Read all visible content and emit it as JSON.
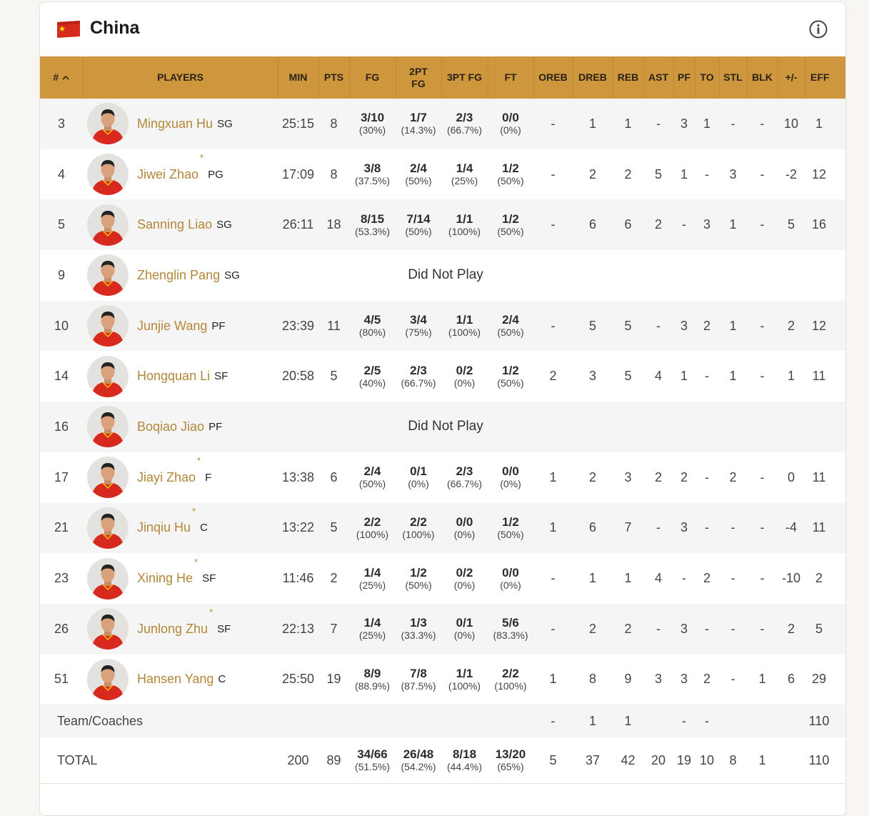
{
  "header": {
    "title": "China"
  },
  "table": {
    "columns": [
      "#",
      "PLAYERS",
      "MIN",
      "PTS",
      "FG",
      "2PT FG",
      "3PT FG",
      "FT",
      "OREB",
      "DREB",
      "REB",
      "AST",
      "PF",
      "TO",
      "STL",
      "BLK",
      "+/-",
      "EFF"
    ],
    "rows": [
      {
        "number": "3",
        "name": "Mingxuan Hu",
        "position": "SG",
        "min": "25:15",
        "pts": "8",
        "shooting": [
          [
            "3/10",
            "(30%)"
          ],
          [
            "1/7",
            "(14.3%)"
          ],
          [
            "2/3",
            "(66.7%)"
          ],
          [
            "0/0",
            "(0%)"
          ]
        ],
        "counting": [
          "-",
          "1",
          "1",
          "-",
          "3",
          "1",
          "-",
          "-",
          "10",
          "1"
        ]
      },
      {
        "number": "4",
        "name": "Jiwei Zhao",
        "starter": "*",
        "position": "PG",
        "min": "17:09",
        "pts": "8",
        "shooting": [
          [
            "3/8",
            "(37.5%)"
          ],
          [
            "2/4",
            "(50%)"
          ],
          [
            "1/4",
            "(25%)"
          ],
          [
            "1/2",
            "(50%)"
          ]
        ],
        "counting": [
          "-",
          "2",
          "2",
          "5",
          "1",
          "-",
          "3",
          "-",
          "-2",
          "12"
        ]
      },
      {
        "number": "5",
        "name": "Sanning Liao",
        "position": "SG",
        "min": "26:11",
        "pts": "18",
        "shooting": [
          [
            "8/15",
            "(53.3%)"
          ],
          [
            "7/14",
            "(50%)"
          ],
          [
            "1/1",
            "(100%)"
          ],
          [
            "1/2",
            "(50%)"
          ]
        ],
        "counting": [
          "-",
          "6",
          "6",
          "2",
          "-",
          "3",
          "1",
          "-",
          "5",
          "16"
        ]
      },
      {
        "number": "9",
        "name": "Zhenglin Pang",
        "position": "SG",
        "note": "Did Not Play"
      },
      {
        "number": "10",
        "name": "Junjie Wang",
        "position": "PF",
        "min": "23:39",
        "pts": "11",
        "shooting": [
          [
            "4/5",
            "(80%)"
          ],
          [
            "3/4",
            "(75%)"
          ],
          [
            "1/1",
            "(100%)"
          ],
          [
            "2/4",
            "(50%)"
          ]
        ],
        "counting": [
          "-",
          "5",
          "5",
          "-",
          "3",
          "2",
          "1",
          "-",
          "2",
          "12"
        ]
      },
      {
        "number": "14",
        "name": "Hongquan Li",
        "position": "SF",
        "min": "20:58",
        "pts": "5",
        "shooting": [
          [
            "2/5",
            "(40%)"
          ],
          [
            "2/3",
            "(66.7%)"
          ],
          [
            "0/2",
            "(0%)"
          ],
          [
            "1/2",
            "(50%)"
          ]
        ],
        "counting": [
          "2",
          "3",
          "5",
          "4",
          "1",
          "-",
          "1",
          "-",
          "1",
          "11"
        ]
      },
      {
        "number": "16",
        "name": "Boqiao Jiao",
        "position": "PF",
        "note": "Did Not Play"
      },
      {
        "number": "17",
        "name": "Jiayi Zhao",
        "starter": "*",
        "position": "F",
        "min": "13:38",
        "pts": "6",
        "shooting": [
          [
            "2/4",
            "(50%)"
          ],
          [
            "0/1",
            "(0%)"
          ],
          [
            "2/3",
            "(66.7%)"
          ],
          [
            "0/0",
            "(0%)"
          ]
        ],
        "counting": [
          "1",
          "2",
          "3",
          "2",
          "2",
          "-",
          "2",
          "-",
          "0",
          "11"
        ]
      },
      {
        "number": "21",
        "name": "Jinqiu Hu",
        "starter": "*",
        "position": "C",
        "min": "13:22",
        "pts": "5",
        "shooting": [
          [
            "2/2",
            "(100%)"
          ],
          [
            "2/2",
            "(100%)"
          ],
          [
            "0/0",
            "(0%)"
          ],
          [
            "1/2",
            "(50%)"
          ]
        ],
        "counting": [
          "1",
          "6",
          "7",
          "-",
          "3",
          "-",
          "-",
          "-",
          "-4",
          "11"
        ]
      },
      {
        "number": "23",
        "name": "Xining He",
        "starter": "*",
        "position": "SF",
        "min": "11:46",
        "pts": "2",
        "shooting": [
          [
            "1/4",
            "(25%)"
          ],
          [
            "1/2",
            "(50%)"
          ],
          [
            "0/2",
            "(0%)"
          ],
          [
            "0/0",
            "(0%)"
          ]
        ],
        "counting": [
          "-",
          "1",
          "1",
          "4",
          "-",
          "2",
          "-",
          "-",
          "-10",
          "2"
        ]
      },
      {
        "number": "26",
        "name": "Junlong Zhu",
        "starter": "*",
        "position": "SF",
        "min": "22:13",
        "pts": "7",
        "shooting": [
          [
            "1/4",
            "(25%)"
          ],
          [
            "1/3",
            "(33.3%)"
          ],
          [
            "0/1",
            "(0%)"
          ],
          [
            "5/6",
            "(83.3%)"
          ]
        ],
        "counting": [
          "-",
          "2",
          "2",
          "-",
          "3",
          "-",
          "-",
          "-",
          "2",
          "5"
        ]
      },
      {
        "number": "51",
        "name": "Hansen Yang",
        "position": "C",
        "min": "25:50",
        "pts": "19",
        "shooting": [
          [
            "8/9",
            "(88.9%)"
          ],
          [
            "7/8",
            "(87.5%)"
          ],
          [
            "1/1",
            "(100%)"
          ],
          [
            "2/2",
            "(100%)"
          ]
        ],
        "counting": [
          "1",
          "8",
          "9",
          "3",
          "3",
          "2",
          "-",
          "1",
          "6",
          "29"
        ]
      }
    ],
    "team": {
      "label": "Team/Coaches",
      "counting": [
        "-",
        "1",
        "1",
        null,
        "-",
        "-",
        null,
        null,
        null,
        "110"
      ]
    },
    "total": {
      "label": "TOTAL",
      "min": "200",
      "pts": "89",
      "shooting": [
        [
          "34/66",
          "(51.5%)"
        ],
        [
          "26/48",
          "(54.2%)"
        ],
        [
          "8/18",
          "(44.4%)"
        ],
        [
          "13/20",
          "(65%)"
        ]
      ],
      "counting": [
        "5",
        "37",
        "42",
        "20",
        "19",
        "10",
        "8",
        "1",
        null,
        "110"
      ]
    }
  }
}
